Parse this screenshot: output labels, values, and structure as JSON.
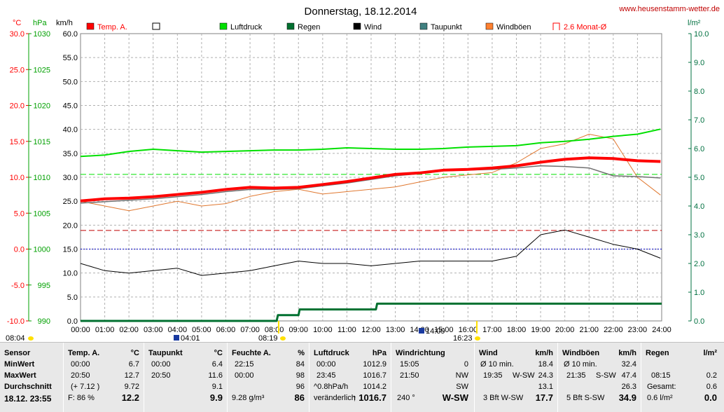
{
  "header": {
    "title": "Donnerstag, 18.12.2014",
    "site": "www.heusenstamm-wetter.de",
    "unit_temp": "°C",
    "unit_press": "hPa",
    "unit_wind": "km/h",
    "unit_rain": "l/m²"
  },
  "legend": [
    {
      "label": "Temp. A.",
      "color": "#ff0000",
      "type": "filled"
    },
    {
      "label": "",
      "color": "#000000",
      "type": "open"
    },
    {
      "label": "Luftdruck",
      "color": "#00e000",
      "type": "filled"
    },
    {
      "label": "Regen",
      "color": "#007030",
      "type": "filled"
    },
    {
      "label": "Wind",
      "color": "#000000",
      "type": "filled"
    },
    {
      "label": "Taupunkt",
      "color": "#408080",
      "type": "filled"
    },
    {
      "label": "Windböen",
      "color": "#ff8030",
      "type": "filled"
    },
    {
      "label": "2.6 Monat-Ø",
      "color": "#ff0000",
      "type": "bracket"
    }
  ],
  "colors": {
    "temp": "#ff0000",
    "dew": "#707070",
    "press": "#00e000",
    "rain": "#007030",
    "wind": "#000000",
    "gust": "#e07830",
    "grid": "#b0b0b0",
    "temp_axis": "#ff0000",
    "press_axis": "#00a000",
    "rain_axis": "#007040"
  },
  "markers": {
    "sunrise": "08:04",
    "sunset": "16:23",
    "moonrise": "04:01",
    "sun_noon": "08:19",
    "moon_set": "14:09"
  },
  "chart_data": {
    "type": "line",
    "x_ticks": [
      "00:00",
      "01:00",
      "02:00",
      "03:00",
      "04:00",
      "05:00",
      "06:00",
      "07:00",
      "08:00",
      "09:00",
      "10:00",
      "11:00",
      "12:00",
      "13:00",
      "14:00",
      "15:00",
      "16:00",
      "17:00",
      "18:00",
      "19:00",
      "20:00",
      "21:00",
      "22:00",
      "23:00",
      "24:00"
    ],
    "xlim_hours": [
      0,
      24
    ],
    "axes": {
      "temp": {
        "min": -10,
        "max": 30,
        "ticks": [
          "30.0",
          "25.0",
          "20.0",
          "15.0",
          "10.0",
          "5.0",
          "0.0",
          "-5.0",
          "-10.0"
        ]
      },
      "pressure": {
        "min": 990,
        "max": 1030,
        "ticks": [
          "1030",
          "1025",
          "1020",
          "1015",
          "1010",
          "1005",
          "1000",
          "995",
          "990"
        ]
      },
      "wind": {
        "min": 0,
        "max": 60,
        "ticks": [
          "60.0",
          "55.0",
          "50.0",
          "45.0",
          "40.0",
          "35.0",
          "30.0",
          "25.0",
          "20.0",
          "15.0",
          "10.0",
          "5.0",
          "0.0"
        ]
      },
      "rain": {
        "min": 0,
        "max": 10,
        "ticks": [
          "10.0",
          "9.0",
          "8.0",
          "7.0",
          "6.0",
          "5.0",
          "4.0",
          "3.0",
          "2.0",
          "1.0",
          "0.0"
        ]
      }
    },
    "reference_lines": {
      "temp_month_avg": 2.6,
      "pressure_month_avg": 1010.4,
      "wind_avg_line": 15.0
    },
    "series": [
      {
        "name": "Temp. A.",
        "axis": "temp",
        "hours": [
          0,
          1,
          2,
          3,
          4,
          5,
          6,
          7,
          8,
          9,
          10,
          11,
          12,
          13,
          14,
          15,
          16,
          17,
          18,
          19,
          20,
          21,
          22,
          23,
          23.95
        ],
        "values": [
          6.7,
          7.0,
          7.1,
          7.3,
          7.6,
          7.9,
          8.3,
          8.6,
          8.5,
          8.6,
          9.0,
          9.4,
          9.9,
          10.4,
          10.6,
          11.0,
          11.1,
          11.3,
          11.6,
          12.1,
          12.5,
          12.7,
          12.6,
          12.3,
          12.2
        ]
      },
      {
        "name": "Taupunkt",
        "axis": "temp",
        "hours": [
          0,
          1,
          2,
          3,
          4,
          5,
          6,
          7,
          8,
          9,
          10,
          11,
          12,
          13,
          14,
          15,
          16,
          17,
          18,
          19,
          20,
          21,
          22,
          23,
          23.95
        ],
        "values": [
          6.4,
          6.6,
          6.8,
          7.0,
          7.3,
          7.6,
          8.0,
          8.3,
          8.3,
          8.4,
          8.8,
          9.2,
          9.7,
          10.2,
          10.5,
          10.9,
          11.0,
          11.1,
          11.3,
          11.6,
          11.5,
          11.3,
          10.2,
          10.1,
          9.9
        ]
      },
      {
        "name": "Luftdruck",
        "axis": "pressure",
        "hours": [
          0,
          1,
          2,
          3,
          4,
          5,
          6,
          7,
          8,
          9,
          10,
          11,
          12,
          13,
          14,
          15,
          16,
          17,
          18,
          19,
          20,
          21,
          22,
          23,
          23.95
        ],
        "values": [
          1012.9,
          1013.1,
          1013.6,
          1013.9,
          1013.7,
          1013.5,
          1013.6,
          1013.7,
          1013.8,
          1013.8,
          1013.9,
          1014.1,
          1014.0,
          1013.9,
          1013.9,
          1014.0,
          1014.2,
          1014.3,
          1014.4,
          1014.8,
          1015.0,
          1015.3,
          1015.7,
          1016.0,
          1016.7
        ]
      },
      {
        "name": "Regen",
        "axis": "rain",
        "hours": [
          0,
          8.1,
          8.15,
          9.0,
          9.05,
          11.8,
          12.2,
          12.25,
          24
        ],
        "values": [
          0,
          0,
          0.2,
          0.2,
          0.4,
          0.4,
          0.4,
          0.6,
          0.6
        ]
      },
      {
        "name": "Wind",
        "axis": "wind",
        "hours": [
          0,
          1,
          2,
          3,
          4,
          5,
          6,
          7,
          8,
          9,
          10,
          11,
          12,
          13,
          14,
          15,
          16,
          17,
          18,
          19,
          20,
          21,
          22,
          23,
          23.95
        ],
        "values": [
          12.0,
          10.5,
          10.0,
          10.5,
          11.0,
          9.5,
          10.0,
          10.5,
          11.5,
          12.5,
          12.0,
          12.0,
          11.5,
          12.0,
          12.5,
          12.5,
          12.5,
          12.5,
          13.5,
          18.0,
          19.0,
          17.5,
          16.0,
          15.0,
          13.1
        ]
      },
      {
        "name": "Windböen",
        "axis": "wind",
        "hours": [
          0,
          1,
          2,
          3,
          4,
          5,
          6,
          7,
          8,
          9,
          10,
          11,
          12,
          13,
          14,
          15,
          16,
          17,
          18,
          19,
          20,
          21,
          22,
          23,
          23.95
        ],
        "values": [
          25.0,
          24.0,
          23.0,
          24.0,
          25.0,
          24.0,
          24.5,
          26.0,
          27.0,
          27.5,
          26.5,
          27.0,
          27.5,
          28.0,
          29.0,
          30.0,
          30.5,
          31.0,
          33.0,
          36.0,
          37.0,
          39.0,
          38.0,
          30.0,
          26.3
        ]
      }
    ]
  },
  "table": {
    "row_labels": {
      "sensor": "Sensor",
      "min": "MinWert",
      "max": "MaxWert",
      "avg": "Durchschnitt",
      "date": "18.12. 23:55"
    },
    "temp": {
      "title": "Temp. A.",
      "unit": "°C",
      "min_time": "00:00",
      "min_val": "6.7",
      "max_time": "20:50",
      "max_val": "12.7",
      "avg_note": "(+ 7.12 )",
      "avg_val": "9.72",
      "cur_note": "F: 86 %",
      "cur_val": "12.2"
    },
    "dew": {
      "title": "Taupunkt",
      "unit": "°C",
      "min_time": "00:00",
      "min_val": "6.4",
      "max_time": "20:50",
      "max_val": "11.6",
      "avg_val": "9.1",
      "cur_val": "9.9"
    },
    "hum": {
      "title": "Feuchte A.",
      "unit": "%",
      "min_time": "22:15",
      "min_val": "84",
      "max_time": "00:00",
      "max_val": "98",
      "avg_val": "96",
      "cur_note": "9.28 g/m³",
      "cur_val": "86"
    },
    "press": {
      "title": "Luftdruck",
      "unit": "hPa",
      "min_time": "00:00",
      "min_val": "1012.9",
      "max_time": "23:45",
      "max_val": "1016.7",
      "avg_note": "^0.8hPa/h",
      "avg_val": "1014.2",
      "cur_note": "veränderlich",
      "cur_arrow": "↑",
      "cur_val": "1016.7"
    },
    "dir": {
      "title": "Windrichtung",
      "min_time": "15:05",
      "min_val": "0",
      "max_time": "21:50",
      "max_val": "NW",
      "avg_val": "SW",
      "cur_note": "240 °",
      "cur_val": "W-SW"
    },
    "wind": {
      "title": "Wind",
      "unit": "km/h",
      "min_label": "Ø 10 min.",
      "min_val": "18.4",
      "max_time": "19:35",
      "max_dir": "W-SW",
      "max_val": "24.3",
      "avg_val": "13.1",
      "cur_note": "3 Bft W-SW",
      "cur_val": "17.7"
    },
    "gust": {
      "title": "Windböen",
      "unit": "km/h",
      "min_label": "Ø 10 min.",
      "min_val": "32.4",
      "max_time": "21:35",
      "max_dir": "S-SW",
      "max_val": "47.4",
      "avg_val": "26.3",
      "cur_note": "5 Bft S-SW",
      "cur_val": "34.9"
    },
    "rain": {
      "title": "Regen",
      "unit": "l/m²",
      "max_time": "08:15",
      "max_val": "0.2",
      "avg_label": "Gesamt:",
      "avg_val": "0.6",
      "cur_note": "0.6 l/m²",
      "cur_val": "0.0"
    }
  }
}
